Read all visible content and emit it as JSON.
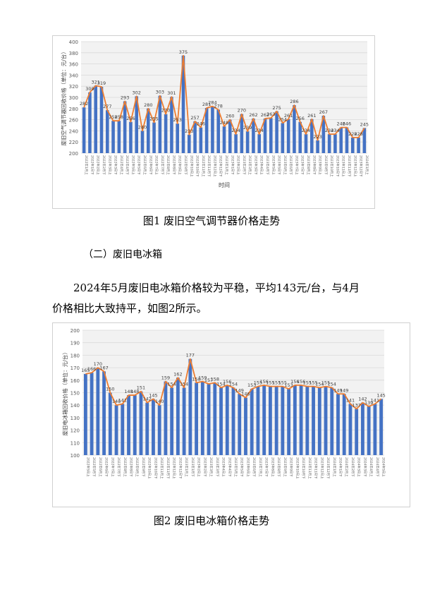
{
  "figure1": {
    "caption": "图1  废旧空气调节器价格走势",
    "chart_data": {
      "type": "bar",
      "ylabel": "废旧空气调节器回收价格（单位：元/台）",
      "xlabel": "时间",
      "ylim": [
        200,
        400
      ],
      "yticks": [
        200,
        220,
        240,
        260,
        280,
        300,
        320,
        340,
        360,
        380,
        400
      ],
      "grid": true,
      "series": [
        {
          "values": [
            282,
            309,
            321,
            319,
            277,
            258,
            258,
            293,
            256,
            302,
            240,
            280,
            255,
            303,
            270,
            301,
            253,
            375,
            233,
            257,
            246,
            281,
            284,
            278,
            248,
            260,
            234,
            270,
            239,
            262,
            234,
            262,
            263,
            275,
            254,
            261,
            286,
            256,
            234,
            261,
            223,
            267,
            234,
            234,
            246,
            246,
            228,
            228,
            245
          ]
        }
      ],
      "categories": [
        "2022年1月上",
        "2022年1月下",
        "2022年2月上",
        "2022年2月下",
        "2022年3月上",
        "2022年3月下",
        "2022年4月上",
        "2022年4月下",
        "2022年5月上",
        "2022年5月下",
        "2022年6月上",
        "2022年6月下",
        "2022年7月上",
        "2022年7月下",
        "2022年8月上",
        "2022年8月下",
        "2022年9月上",
        "2022年9月下",
        "2022年10月上",
        "2022年10月下",
        "2022年11月上",
        "2022年11月下",
        "2022年12月上",
        "2022年12月下",
        "2023年1月上",
        "2023年1月下",
        "2023年2月上",
        "2023年2月下",
        "2023年3月上",
        "2023年3月下",
        "2023年4月上",
        "2023年4月下",
        "2023年5月上",
        "2023年5月下",
        "2023年6月上",
        "2023年6月下",
        "2023年7月上",
        "2023年7月下",
        "2023年8月上",
        "2023年8月下",
        "2023年9月上",
        "2023年9月下",
        "2023年10月上",
        "2023年10月下",
        "2023年11月上",
        "2023年11月下",
        "2023年12月上",
        "2023年12月下",
        "2024年1月上"
      ]
    }
  },
  "section": {
    "heading": "（二）废旧电冰箱"
  },
  "paragraph": {
    "line1": "2024年5月废旧电冰箱价格较为平稳，平均143元/台，与4月",
    "line2": "价格相比大致持平，如图2所示。"
  },
  "figure2": {
    "caption": "图2  废旧电冰箱价格走势",
    "chart_data": {
      "type": "bar",
      "ylabel": "废旧电冰箱回收价格（单位：元/台）",
      "xlabel": "",
      "ylim": [
        100,
        200
      ],
      "yticks": [
        100,
        110,
        120,
        130,
        140,
        150,
        160,
        170,
        180,
        190,
        200
      ],
      "grid": true,
      "series": [
        {
          "values": [
            165,
            166,
            170,
            167,
            150,
            140,
            141,
            148,
            148,
            151,
            142,
            145,
            140,
            159,
            154,
            162,
            154,
            177,
            158,
            159,
            157,
            158,
            154,
            156,
            154,
            149,
            146,
            153,
            155,
            156,
            155,
            155,
            155,
            153,
            156,
            156,
            155,
            155,
            154,
            155,
            154,
            149,
            149,
            141,
            137,
            142,
            139,
            141,
            145
          ]
        }
      ],
      "categories": [
        "2022年5月上",
        "2022年5月下",
        "2022年6月上",
        "2022年6月下",
        "2022年7月上",
        "2022年7月下",
        "2022年8月上",
        "2022年8月下",
        "2022年9月上",
        "2022年9月下",
        "2022年10月上",
        "2022年10月下",
        "2022年11月上",
        "2022年11月下",
        "2022年12月上",
        "2022年12月下",
        "2023年1月上",
        "2023年1月下",
        "2023年2月上",
        "2023年2月下",
        "2023年3月上",
        "2023年3月下",
        "2023年4月上",
        "2023年4月下",
        "2023年5月上",
        "2023年5月下",
        "2023年6月上",
        "2023年6月下",
        "2023年7月上",
        "2023年7月下",
        "2023年8月上",
        "2023年8月下",
        "2023年9月上",
        "2023年9月下",
        "2023年10月上",
        "2023年10月下",
        "2023年11月上",
        "2023年11月下",
        "2023年12月上",
        "2023年12月下",
        "2024年1月上",
        "2024年1月下",
        "2024年2月上",
        "2024年2月下",
        "2024年3月上",
        "2024年3月下",
        "2024年4月上",
        "2024年4月下",
        "2024年5月上"
      ]
    }
  },
  "colors": {
    "bar": "#4472c4",
    "line": "#ed7d31",
    "grid": "#d9d9d9"
  }
}
